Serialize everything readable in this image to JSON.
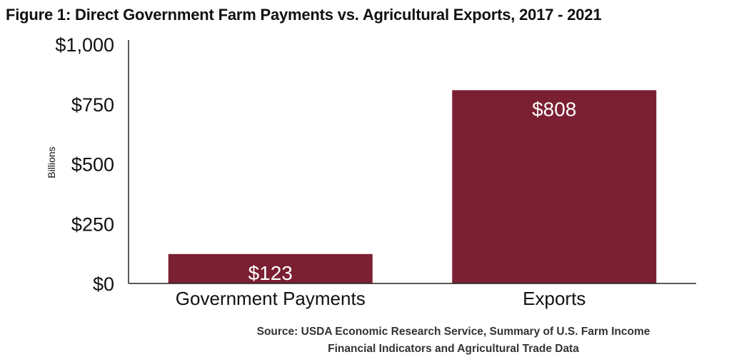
{
  "chart_data": {
    "type": "bar",
    "title": "Figure 1: Direct Government Farm Payments vs. Agricultural Exports, 2017 - 2021",
    "categories": [
      "Government Payments",
      "Exports"
    ],
    "values": [
      123,
      808
    ],
    "value_labels": [
      "$123",
      "$808"
    ],
    "ylabel": "Billions",
    "xlabel": "",
    "ylim": [
      0,
      1000
    ],
    "yticks": [
      0,
      250,
      500,
      750,
      1000
    ],
    "ytick_labels": [
      "$0",
      "$250",
      "$500",
      "$750",
      "$1,000"
    ],
    "grid": false,
    "legend": "none",
    "bar_color": "#7b1f32",
    "label_color": "#ffffff"
  },
  "source": {
    "line1": "Source: USDA Economic Research Service, Summary of U.S. Farm Income",
    "line2": "Financial Indicators and Agricultural Trade Data"
  }
}
